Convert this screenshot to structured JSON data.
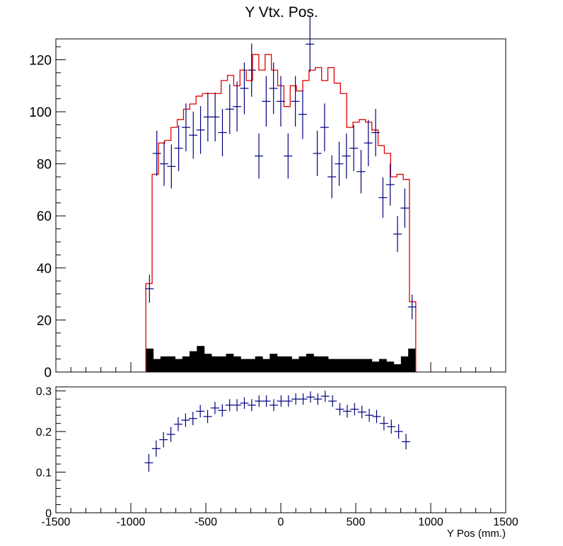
{
  "chart_data": [
    {
      "type": "histogram-errorbar",
      "title": "Y Vtx. Pos.",
      "xlim": [
        -1500,
        1500
      ],
      "ylim": [
        0,
        128
      ],
      "yticks": [
        0,
        20,
        40,
        60,
        80,
        100,
        120
      ],
      "bin_edges_start": -900,
      "bin_width": 36,
      "series": [
        {
          "type": "step-line",
          "color": "#e00000",
          "values": [
            34,
            76,
            88,
            89,
            94,
            97,
            101,
            103,
            106,
            107,
            107,
            107,
            112,
            114,
            110,
            116,
            112,
            122,
            116,
            122,
            116,
            110,
            102,
            110,
            108,
            112,
            116,
            117,
            112,
            117,
            111,
            107,
            94,
            96,
            97,
            96,
            93,
            87,
            84,
            75,
            76,
            74,
            27
          ]
        },
        {
          "type": "errorbar",
          "color": "#000080",
          "values": [
            32,
            84,
            80,
            79,
            86,
            94,
            91,
            93,
            98,
            98,
            92,
            101,
            102,
            109,
            116,
            83,
            104,
            109,
            104,
            83,
            104,
            99,
            126,
            84,
            94,
            75,
            80,
            83,
            86,
            77,
            88,
            92,
            67,
            72,
            53,
            63,
            25
          ],
          "x_offset_bins": 0
        },
        {
          "type": "filled-bar",
          "color": "#000000",
          "values": [
            9,
            5,
            6,
            6,
            5,
            6,
            8,
            10,
            7,
            6,
            6,
            7,
            6,
            5,
            5,
            6,
            5,
            7,
            6,
            6,
            5,
            6,
            7,
            6,
            6,
            5,
            5,
            5,
            5,
            5,
            5,
            4,
            5,
            4,
            3,
            6,
            9
          ]
        }
      ]
    },
    {
      "type": "errorbar",
      "xlim": [
        -1500,
        1500
      ],
      "ylim": [
        0,
        0.31
      ],
      "yticks": [
        0,
        0.1,
        0.2,
        0.3
      ],
      "xticks": [
        -1500,
        -1000,
        -500,
        0,
        500,
        1000,
        1500
      ],
      "xlabel": "Y Pos (mm.)",
      "series": [
        {
          "color": "#000080",
          "x_start": -880,
          "x_step": 49,
          "values": [
            0.123,
            0.158,
            0.18,
            0.193,
            0.218,
            0.228,
            0.232,
            0.25,
            0.237,
            0.258,
            0.252,
            0.265,
            0.265,
            0.27,
            0.265,
            0.275,
            0.275,
            0.265,
            0.275,
            0.275,
            0.28,
            0.28,
            0.285,
            0.28,
            0.287,
            0.275,
            0.255,
            0.25,
            0.255,
            0.248,
            0.24,
            0.237,
            0.22,
            0.212,
            0.2,
            0.175
          ]
        }
      ]
    }
  ]
}
